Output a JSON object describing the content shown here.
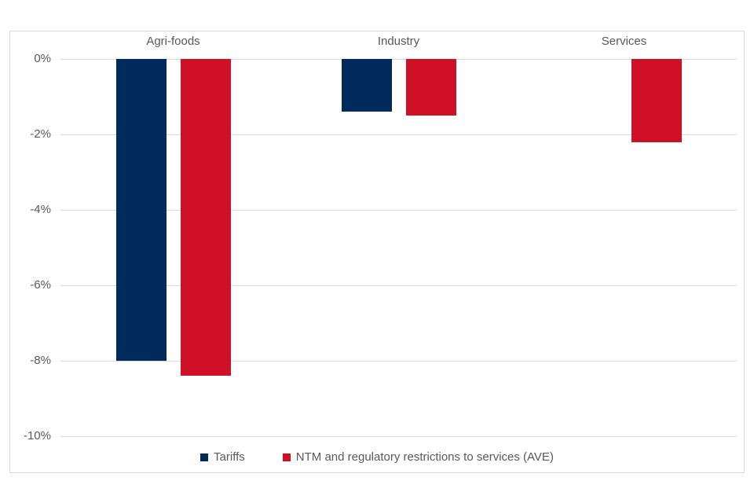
{
  "chart_data": {
    "type": "bar",
    "title": "",
    "orientation": "vertical",
    "categories": [
      "Agri-foods",
      "Industry",
      "Services"
    ],
    "series": [
      {
        "name": "Tariffs",
        "color": "#012a5c",
        "values": [
          -8.0,
          -1.4,
          0
        ]
      },
      {
        "name": "NTM and regulatory restrictions to services (AVE)",
        "color": "#ce1126",
        "values": [
          -8.4,
          -1.5,
          -2.2
        ]
      }
    ],
    "unit": "%",
    "ylim": [
      0,
      -10
    ],
    "y_ticks": [
      {
        "value": 0,
        "label": "0%"
      },
      {
        "value": -2,
        "label": "-2%"
      },
      {
        "value": -4,
        "label": "-4%"
      },
      {
        "value": -6,
        "label": "-6%"
      },
      {
        "value": -8,
        "label": "-8%"
      },
      {
        "value": -10,
        "label": "-10%"
      }
    ],
    "grid": true,
    "legend_position": "bottom",
    "category_labels_position": "top",
    "colors": {
      "grid": "#d9d9d9",
      "border": "#d9d9d9",
      "axis_text": "#595959",
      "background": "#ffffff"
    }
  }
}
